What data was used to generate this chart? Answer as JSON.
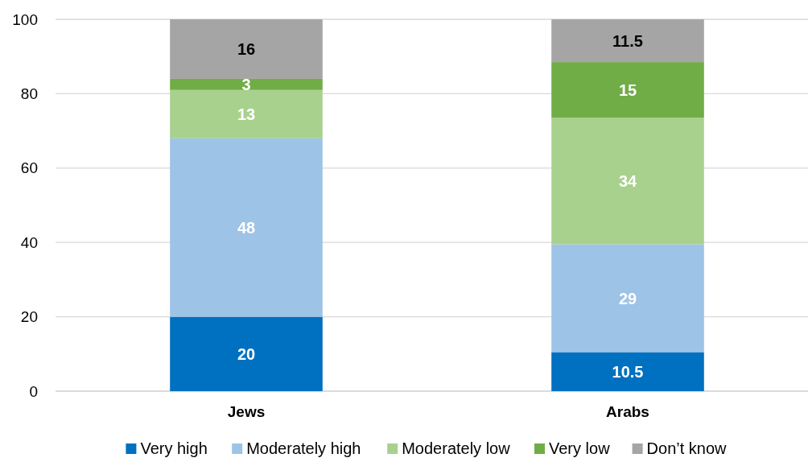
{
  "chart_data": {
    "type": "bar",
    "stacked": true,
    "categories": [
      "Jews",
      "Arabs"
    ],
    "series": [
      {
        "name": "Very high",
        "color": "#0070c0",
        "values": [
          20,
          10.5
        ]
      },
      {
        "name": "Moderately high",
        "color": "#9dc3e6",
        "values": [
          48,
          29
        ]
      },
      {
        "name": "Moderately low",
        "color": "#a9d18e",
        "values": [
          13,
          34
        ]
      },
      {
        "name": "Very low",
        "color": "#70ad47",
        "values": [
          3,
          15
        ]
      },
      {
        "name": "Don’t know",
        "color": "#a5a5a5",
        "values": [
          16,
          11.5
        ]
      }
    ],
    "ylim": [
      0,
      100
    ],
    "yticks": [
      0,
      20,
      40,
      60,
      80,
      100
    ],
    "grid": "y",
    "legend": "bottom",
    "data_labels": true
  }
}
